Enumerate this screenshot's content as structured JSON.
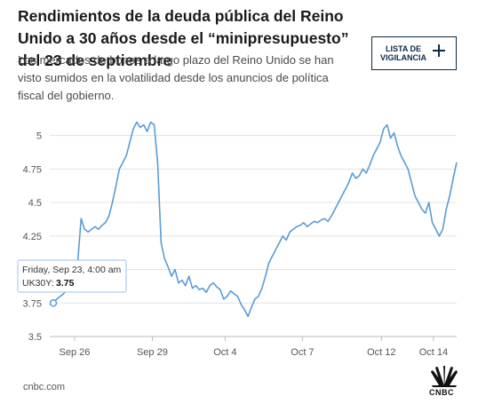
{
  "header": {
    "title": "Rendimientos de la deuda pública del Reino Unido a 30 años desde el “minipresupuesto” del 23 de septiembre",
    "subtitle": "Los mercados de bonos a largo plazo del Reino Unido se han visto sumidos en la volatilidad desde los anuncios de política fiscal del gobierno.",
    "watchlist_label": "LISTA DE VIGILANCIA"
  },
  "footer": {
    "source": "cnbc.com",
    "logo_text": "CNBC"
  },
  "tooltip": {
    "date": "Friday, Sep 23, 4:00 am",
    "series_label": "UK30Y:",
    "value": "3.75"
  },
  "colors": {
    "line": "#5b9bd5",
    "grid": "#e3e3e3",
    "axis": "#bbbbbb",
    "button_border": "#0c2a4a"
  },
  "chart_data": {
    "type": "line",
    "title": "Rendimientos de la deuda pública del Reino Unido a 30 años desde el “minipresupuesto” del 23 de septiembre",
    "xlabel": "",
    "ylabel": "",
    "ylim": [
      3.5,
      5.15
    ],
    "yticks": [
      3.5,
      3.75,
      4,
      4.25,
      4.5,
      4.75,
      5
    ],
    "ytick_labels": [
      "3.5",
      "3.75",
      "4",
      "4.25",
      "4.5",
      "4.75",
      "5"
    ],
    "xtick_labels": [
      "Sep 26",
      "Sep 29",
      "Oct 4",
      "Oct 7",
      "Oct 12",
      "Oct 14"
    ],
    "grid": true,
    "series": [
      {
        "name": "UK30Y",
        "values": [
          3.75,
          3.78,
          3.8,
          3.82,
          3.86,
          3.9,
          3.93,
          4.05,
          4.38,
          4.3,
          4.28,
          4.3,
          4.32,
          4.3,
          4.33,
          4.35,
          4.4,
          4.5,
          4.62,
          4.75,
          4.8,
          4.85,
          4.95,
          5.05,
          5.1,
          5.06,
          5.08,
          5.03,
          5.1,
          5.08,
          4.8,
          4.2,
          4.08,
          4.02,
          3.95,
          4.0,
          3.9,
          3.92,
          3.88,
          3.95,
          3.86,
          3.88,
          3.85,
          3.86,
          3.83,
          3.88,
          3.9,
          3.87,
          3.85,
          3.78,
          3.8,
          3.84,
          3.82,
          3.8,
          3.74,
          3.7,
          3.65,
          3.72,
          3.78,
          3.8,
          3.86,
          3.95,
          4.05,
          4.1,
          4.15,
          4.2,
          4.25,
          4.22,
          4.28,
          4.3,
          4.32,
          4.33,
          4.35,
          4.32,
          4.34,
          4.36,
          4.35,
          4.37,
          4.38,
          4.36,
          4.4,
          4.45,
          4.5,
          4.55,
          4.6,
          4.65,
          4.72,
          4.68,
          4.7,
          4.75,
          4.72,
          4.78,
          4.85,
          4.9,
          4.95,
          5.05,
          5.08,
          4.98,
          5.02,
          4.92,
          4.85,
          4.8,
          4.75,
          4.65,
          4.55,
          4.5,
          4.45,
          4.42,
          4.5,
          4.35,
          4.3,
          4.25,
          4.3,
          4.45,
          4.55,
          4.68,
          4.8
        ]
      }
    ]
  }
}
